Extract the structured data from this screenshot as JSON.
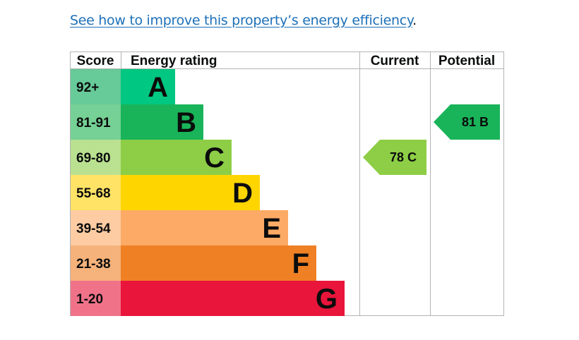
{
  "link": {
    "text": "See how to improve this property’s energy efficiency",
    "trailing": "."
  },
  "table": {
    "headers": {
      "score": "Score",
      "rating": "Energy rating",
      "current": "Current",
      "potential": "Potential"
    },
    "bands": [
      {
        "score": "92+",
        "letter": "A",
        "bar_color": "#00c781",
        "score_bg": "#66ca99"
      },
      {
        "score": "81-91",
        "letter": "B",
        "bar_color": "#19b459",
        "score_bg": "#75d195"
      },
      {
        "score": "69-80",
        "letter": "C",
        "bar_color": "#8dce46",
        "score_bg": "#b9e190"
      },
      {
        "score": "55-68",
        "letter": "D",
        "bar_color": "#ffd500",
        "score_bg": "#ffe366"
      },
      {
        "score": "39-54",
        "letter": "E",
        "bar_color": "#fcaa65",
        "score_bg": "#fdcca2"
      },
      {
        "score": "21-38",
        "letter": "F",
        "bar_color": "#ef8023",
        "score_bg": "#f5b27b"
      },
      {
        "score": "1-20",
        "letter": "G",
        "bar_color": "#e9153b",
        "score_bg": "#f07289"
      }
    ],
    "current": {
      "label": "78  C",
      "band": 2,
      "color": "#8dce46"
    },
    "potential": {
      "label": "81  B",
      "band": 1,
      "color": "#19b459"
    }
  }
}
